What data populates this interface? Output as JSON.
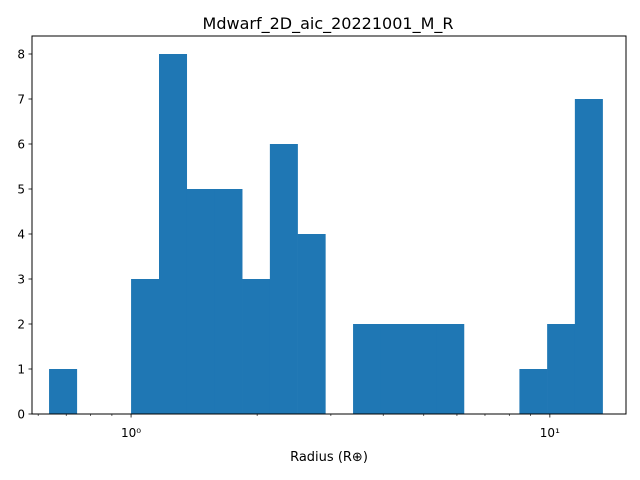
{
  "chart_data": {
    "type": "bar",
    "title": "Mdwarf_2D_aic_20221001_M_R",
    "xlabel": "Radius (R⊕)",
    "ylabel": "",
    "x_scale": "log",
    "xlim": [
      0.58,
      15.2
    ],
    "ylim": [
      0,
      8.4
    ],
    "grid": false,
    "bar_color": "#1f77b4",
    "x_tick_labels": [
      "10⁰",
      "10¹"
    ],
    "y_tick_labels": [
      "0",
      "1",
      "2",
      "3",
      "4",
      "5",
      "6",
      "7",
      "8"
    ],
    "bin_edges": [
      0.637,
      0.742,
      0.864,
      1.0,
      1.166,
      1.358,
      1.581,
      1.842,
      2.145,
      2.498,
      2.91,
      3.389,
      3.947,
      4.597,
      5.354,
      6.236,
      7.263,
      8.459,
      9.852,
      11.474,
      13.364
    ],
    "counts": [
      1,
      0,
      0,
      3,
      8,
      5,
      5,
      3,
      6,
      4,
      0,
      2,
      2,
      2,
      2,
      0,
      0,
      1,
      2,
      7
    ]
  }
}
